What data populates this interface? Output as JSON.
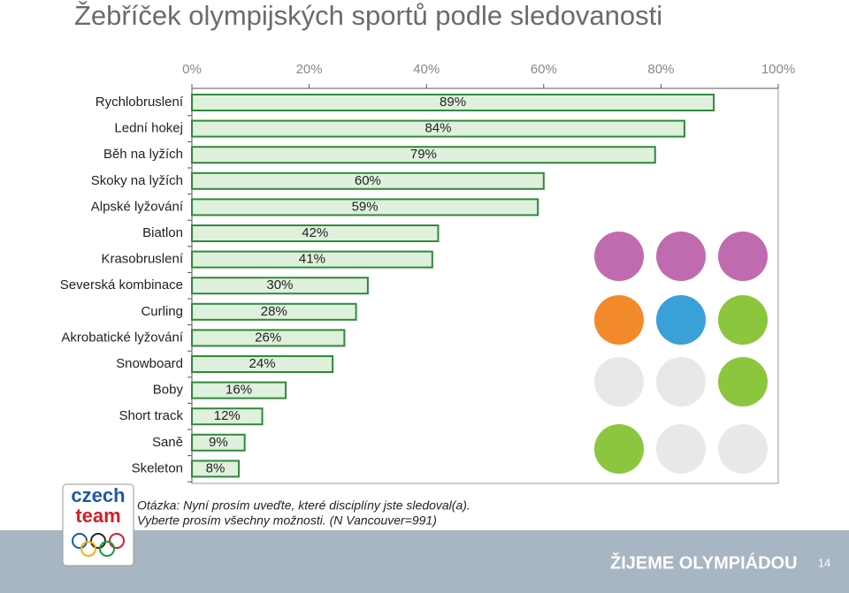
{
  "chart_data": {
    "type": "bar",
    "orientation": "horizontal",
    "title": "Žebříček olympijských sportů podle sledovanosti",
    "categories": [
      "Rychlobruslení",
      "Lední hokej",
      "Běh na lyžích",
      "Skoky na lyžích",
      "Alpské lyžování",
      "Biatlon",
      "Krasobruslení",
      "Severská kombinace",
      "Curling",
      "Akrobatické lyžování",
      "Snowboard",
      "Boby",
      "Short track",
      "Saně",
      "Skeleton"
    ],
    "values": [
      89,
      84,
      79,
      60,
      59,
      42,
      41,
      30,
      28,
      26,
      24,
      16,
      12,
      9,
      8
    ],
    "value_labels": [
      "89%",
      "84%",
      "79%",
      "60%",
      "59%",
      "42%",
      "41%",
      "30%",
      "28%",
      "26%",
      "24%",
      "16%",
      "12%",
      "9%",
      "8%"
    ],
    "color": "#2f8a3a",
    "xlim": [
      0,
      100
    ],
    "xticks": [
      {
        "value": 0,
        "label": "0%"
      },
      {
        "value": 20,
        "label": "20%"
      },
      {
        "value": 40,
        "label": "40%"
      },
      {
        "value": 60,
        "label": "60%"
      },
      {
        "value": 80,
        "label": "80%"
      },
      {
        "value": 100,
        "label": "100%"
      }
    ],
    "grid": false,
    "annotations": [
      "Otázka: Nyní prosím uveďte, které disciplíny jste sledoval(a).",
      "Vyberte prosím všechny možnosti. (N Vancouver=991)"
    ]
  },
  "slide": {
    "logo": [
      "czech",
      "team"
    ],
    "footer": "ŽIJEME OLYMPIÁDOU",
    "page_number": "14"
  }
}
